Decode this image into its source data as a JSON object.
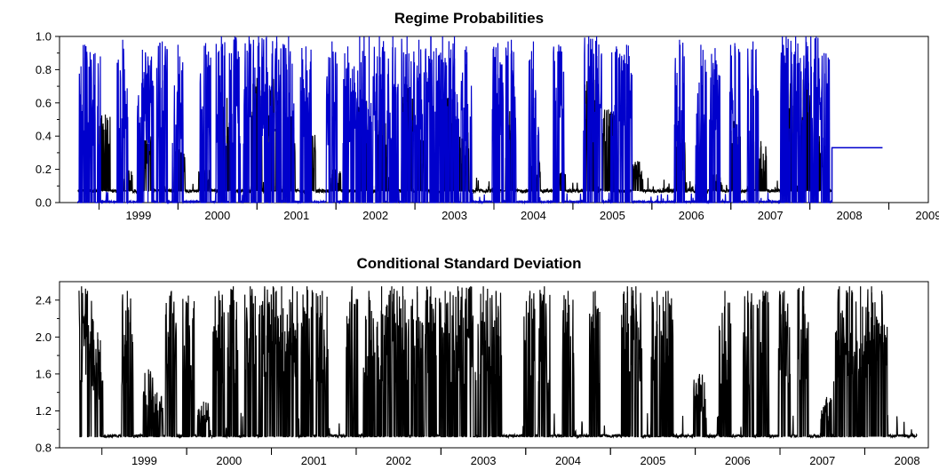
{
  "chart_data": [
    {
      "type": "line",
      "title": "Regime Probabilities",
      "xlabel": "",
      "ylabel": "",
      "ylim": [
        0.0,
        1.0
      ],
      "yticks": [
        "0.0",
        "0.2",
        "0.4",
        "0.6",
        "0.8",
        "1.0"
      ],
      "xlim": [
        1998.5,
        2009.5
      ],
      "xticks": [
        "1999",
        "2000",
        "2001",
        "2002",
        "2003",
        "2004",
        "2005",
        "2006",
        "2007",
        "2008",
        "2009"
      ],
      "grid": false,
      "series": [
        {
          "color": "#000000",
          "style": "baseline",
          "baseline": 0.07,
          "bursts": [
            {
              "x": 1999.08,
              "peak": 0.53
            },
            {
              "x": 1999.36,
              "peak": 0.2
            },
            {
              "x": 1999.62,
              "peak": 0.41
            },
            {
              "x": 2000.02,
              "peak": 0.32
            },
            {
              "x": 2000.33,
              "peak": 0.22
            },
            {
              "x": 2000.62,
              "peak": 0.63
            },
            {
              "x": 2001.0,
              "peak": 0.75
            },
            {
              "x": 2001.2,
              "peak": 0.75
            },
            {
              "x": 2001.42,
              "peak": 0.52
            },
            {
              "x": 2001.68,
              "peak": 0.43
            },
            {
              "x": 2002.0,
              "peak": 0.2
            },
            {
              "x": 2002.35,
              "peak": 0.62
            },
            {
              "x": 2002.58,
              "peak": 0.55
            },
            {
              "x": 2002.9,
              "peak": 0.71
            },
            {
              "x": 2003.08,
              "peak": 0.38
            },
            {
              "x": 2003.42,
              "peak": 0.63
            },
            {
              "x": 2003.62,
              "peak": 0.43
            },
            {
              "x": 2004.2,
              "peak": 0.55
            },
            {
              "x": 2004.52,
              "peak": 0.26
            },
            {
              "x": 2004.85,
              "peak": 0.18
            },
            {
              "x": 2005.22,
              "peak": 0.75
            },
            {
              "x": 2005.45,
              "peak": 0.56
            },
            {
              "x": 2005.82,
              "peak": 0.25
            },
            {
              "x": 2006.35,
              "peak": 0.42
            },
            {
              "x": 2006.82,
              "peak": 0.17
            },
            {
              "x": 2007.05,
              "peak": 0.51
            },
            {
              "x": 2007.38,
              "peak": 0.37
            },
            {
              "x": 2007.72,
              "peak": 0.75
            },
            {
              "x": 2007.95,
              "peak": 0.75
            },
            {
              "x": 2008.12,
              "peak": 0.4
            }
          ],
          "end_x": 2008.28
        },
        {
          "color": "#0000cc",
          "style": "spikes",
          "baseline": 0.0,
          "bursts": [
            {
              "x": 1998.82,
              "peak": 0.95
            },
            {
              "x": 1998.95,
              "peak": 0.9
            },
            {
              "x": 1999.3,
              "peak": 0.98
            },
            {
              "x": 1999.55,
              "peak": 0.92
            },
            {
              "x": 1999.62,
              "peak": 0.88
            },
            {
              "x": 1999.8,
              "peak": 0.97
            },
            {
              "x": 2000.0,
              "peak": 0.95
            },
            {
              "x": 2000.35,
              "peak": 0.96
            },
            {
              "x": 2000.55,
              "peak": 1.0
            },
            {
              "x": 2000.72,
              "peak": 1.0
            },
            {
              "x": 2000.9,
              "peak": 1.0
            },
            {
              "x": 2001.02,
              "peak": 1.0
            },
            {
              "x": 2001.12,
              "peak": 1.0
            },
            {
              "x": 2001.25,
              "peak": 1.0
            },
            {
              "x": 2001.4,
              "peak": 1.0
            },
            {
              "x": 2001.62,
              "peak": 0.94
            },
            {
              "x": 2001.95,
              "peak": 0.97
            },
            {
              "x": 2002.15,
              "peak": 0.94
            },
            {
              "x": 2002.3,
              "peak": 1.0
            },
            {
              "x": 2002.42,
              "peak": 1.0
            },
            {
              "x": 2002.55,
              "peak": 1.0
            },
            {
              "x": 2002.72,
              "peak": 1.0
            },
            {
              "x": 2002.9,
              "peak": 1.0
            },
            {
              "x": 2003.05,
              "peak": 0.98
            },
            {
              "x": 2003.2,
              "peak": 1.0
            },
            {
              "x": 2003.35,
              "peak": 1.0
            },
            {
              "x": 2003.5,
              "peak": 1.0
            },
            {
              "x": 2003.65,
              "peak": 0.94
            },
            {
              "x": 2004.05,
              "peak": 0.96
            },
            {
              "x": 2004.22,
              "peak": 0.98
            },
            {
              "x": 2004.5,
              "peak": 0.97
            },
            {
              "x": 2004.82,
              "peak": 0.95
            },
            {
              "x": 2005.2,
              "peak": 1.0
            },
            {
              "x": 2005.3,
              "peak": 1.0
            },
            {
              "x": 2005.55,
              "peak": 0.94
            },
            {
              "x": 2005.68,
              "peak": 0.95
            },
            {
              "x": 2006.35,
              "peak": 0.98
            },
            {
              "x": 2006.62,
              "peak": 0.95
            },
            {
              "x": 2006.8,
              "peak": 0.93
            },
            {
              "x": 2007.05,
              "peak": 0.96
            },
            {
              "x": 2007.28,
              "peak": 0.97
            },
            {
              "x": 2007.7,
              "peak": 1.0
            },
            {
              "x": 2007.82,
              "peak": 1.0
            },
            {
              "x": 2007.95,
              "peak": 1.0
            },
            {
              "x": 2008.08,
              "peak": 1.0
            },
            {
              "x": 2008.18,
              "peak": 0.9
            }
          ],
          "end_x": 2008.28,
          "tail": {
            "x_start": 2008.28,
            "x_end": 2008.92,
            "value": 0.33
          }
        }
      ]
    },
    {
      "type": "line",
      "title": "Conditional Standard Deviation",
      "xlabel": "",
      "ylabel": "",
      "ylim": [
        0.8,
        2.6
      ],
      "yticks": [
        "0.8",
        "1.2",
        "1.6",
        "2.0",
        "2.4"
      ],
      "xlim": [
        1998.5,
        2008.75
      ],
      "xticks": [
        "1999",
        "2000",
        "2001",
        "2002",
        "2003",
        "2004",
        "2005",
        "2006",
        "2007",
        "2008"
      ],
      "grid": false,
      "series": [
        {
          "color": "#000000",
          "style": "spikes",
          "baseline": 0.92,
          "bursts": [
            {
              "x": 1998.76,
              "peak": 2.55
            },
            {
              "x": 1998.83,
              "peak": 2.5
            },
            {
              "x": 1998.95,
              "peak": 2.05
            },
            {
              "x": 1999.3,
              "peak": 2.5
            },
            {
              "x": 1999.55,
              "peak": 1.65
            },
            {
              "x": 1999.65,
              "peak": 1.4
            },
            {
              "x": 1999.82,
              "peak": 2.5
            },
            {
              "x": 2000.02,
              "peak": 2.45
            },
            {
              "x": 2000.2,
              "peak": 1.3
            },
            {
              "x": 2000.38,
              "peak": 2.5
            },
            {
              "x": 2000.55,
              "peak": 2.55
            },
            {
              "x": 2000.75,
              "peak": 2.55
            },
            {
              "x": 2000.92,
              "peak": 2.55
            },
            {
              "x": 2001.02,
              "peak": 2.55
            },
            {
              "x": 2001.12,
              "peak": 2.55
            },
            {
              "x": 2001.25,
              "peak": 2.55
            },
            {
              "x": 2001.42,
              "peak": 2.55
            },
            {
              "x": 2001.6,
              "peak": 2.5
            },
            {
              "x": 2001.95,
              "peak": 2.55
            },
            {
              "x": 2002.15,
              "peak": 2.5
            },
            {
              "x": 2002.3,
              "peak": 2.55
            },
            {
              "x": 2002.42,
              "peak": 2.55
            },
            {
              "x": 2002.55,
              "peak": 2.55
            },
            {
              "x": 2002.72,
              "peak": 2.55
            },
            {
              "x": 2002.88,
              "peak": 2.55
            },
            {
              "x": 2003.05,
              "peak": 2.5
            },
            {
              "x": 2003.2,
              "peak": 2.55
            },
            {
              "x": 2003.35,
              "peak": 2.55
            },
            {
              "x": 2003.5,
              "peak": 2.55
            },
            {
              "x": 2003.65,
              "peak": 2.5
            },
            {
              "x": 2004.05,
              "peak": 2.5
            },
            {
              "x": 2004.22,
              "peak": 2.55
            },
            {
              "x": 2004.5,
              "peak": 2.5
            },
            {
              "x": 2004.82,
              "peak": 2.5
            },
            {
              "x": 2005.2,
              "peak": 2.55
            },
            {
              "x": 2005.3,
              "peak": 2.55
            },
            {
              "x": 2005.55,
              "peak": 2.5
            },
            {
              "x": 2005.68,
              "peak": 2.5
            },
            {
              "x": 2006.05,
              "peak": 1.6
            },
            {
              "x": 2006.35,
              "peak": 2.5
            },
            {
              "x": 2006.62,
              "peak": 2.5
            },
            {
              "x": 2006.8,
              "peak": 2.5
            },
            {
              "x": 2007.05,
              "peak": 2.5
            },
            {
              "x": 2007.28,
              "peak": 2.55
            },
            {
              "x": 2007.55,
              "peak": 1.35
            },
            {
              "x": 2007.7,
              "peak": 2.55
            },
            {
              "x": 2007.82,
              "peak": 2.55
            },
            {
              "x": 2007.95,
              "peak": 2.55
            },
            {
              "x": 2008.08,
              "peak": 2.55
            },
            {
              "x": 2008.2,
              "peak": 2.5
            }
          ],
          "end_x": 2008.62
        }
      ]
    }
  ]
}
